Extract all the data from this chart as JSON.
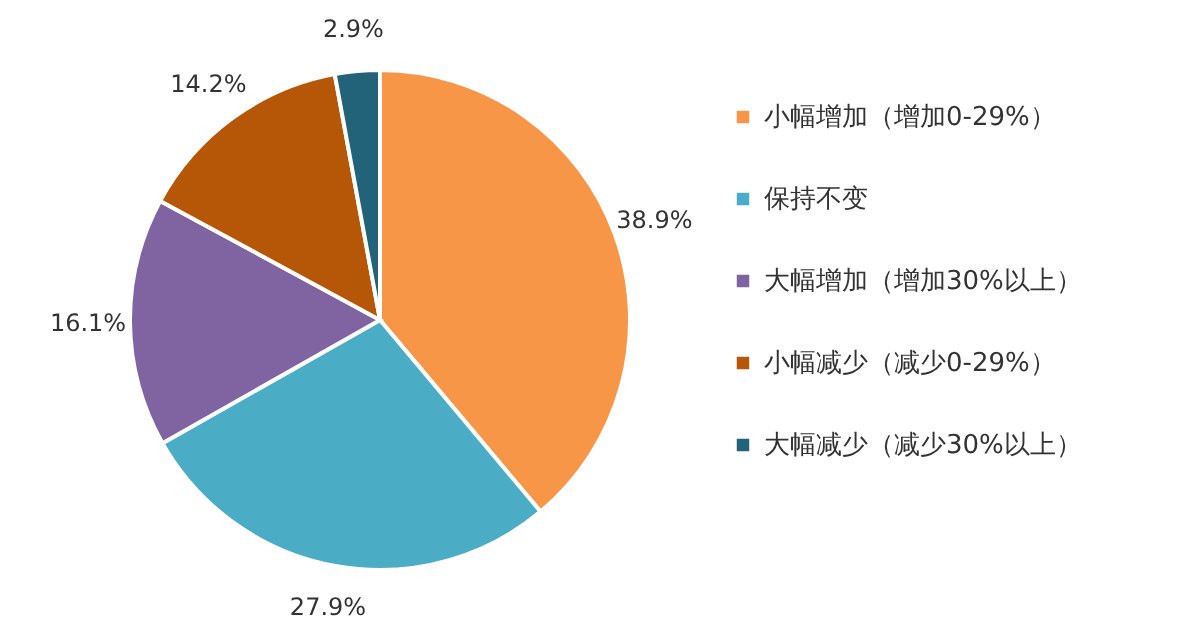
{
  "chart_data": {
    "type": "pie",
    "categories": [
      "小幅增加（增加0-29%）",
      "保持不变",
      "大幅增加（增加30%以上）",
      "小幅减少（减少0-29%）",
      "大幅减少（减少30%以上）"
    ],
    "values": [
      38.9,
      27.9,
      16.1,
      14.2,
      2.9
    ],
    "colors": [
      "#f79646",
      "#4bacc6",
      "#8064a2",
      "#b65708",
      "#23637a"
    ],
    "value_labels": [
      "38.9%",
      "27.9%",
      "16.1%",
      "14.2%",
      "2.9%"
    ],
    "legend": "right"
  }
}
